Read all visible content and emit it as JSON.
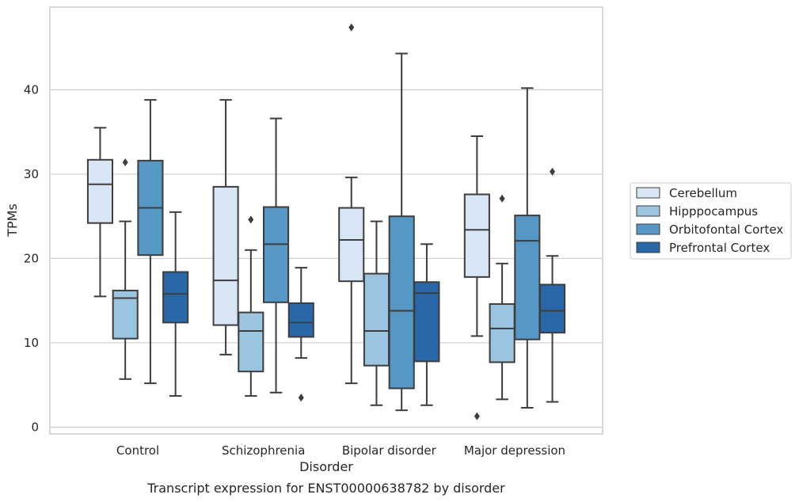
{
  "chart_data": {
    "type": "box",
    "title": "",
    "caption": "Transcript expression for ENST00000638782 by disorder",
    "xlabel": "Disorder",
    "ylabel": "TPMs",
    "ylim": [
      -0.8,
      49.8
    ],
    "yticks": [
      0,
      10,
      20,
      30,
      40
    ],
    "grid": "horizontal",
    "legend_position": "right",
    "categories": [
      "Control",
      "Schizophrenia",
      "Bipolar disorder",
      "Major depression"
    ],
    "series": [
      {
        "name": "Cerebellum",
        "color": "#d7e5f4",
        "boxes": [
          {
            "whisker_low": 15.5,
            "q1": 24.2,
            "median": 28.8,
            "q3": 31.7,
            "whisker_high": 35.5,
            "outliers": []
          },
          {
            "whisker_low": 8.6,
            "q1": 12.1,
            "median": 17.4,
            "q3": 28.5,
            "whisker_high": 38.8,
            "outliers": []
          },
          {
            "whisker_low": 5.2,
            "q1": 17.3,
            "median": 22.2,
            "q3": 26.0,
            "whisker_high": 29.6,
            "outliers": [
              47.4
            ]
          },
          {
            "whisker_low": 10.8,
            "q1": 17.8,
            "median": 23.4,
            "q3": 27.6,
            "whisker_high": 34.5,
            "outliers": [
              1.3
            ]
          }
        ]
      },
      {
        "name": "Hipppocampus",
        "color": "#9ac4df",
        "boxes": [
          {
            "whisker_low": 5.7,
            "q1": 10.5,
            "median": 15.3,
            "q3": 16.2,
            "whisker_high": 24.4,
            "outliers": [
              31.4
            ]
          },
          {
            "whisker_low": 3.7,
            "q1": 6.6,
            "median": 11.4,
            "q3": 13.6,
            "whisker_high": 21.0,
            "outliers": [
              24.6
            ]
          },
          {
            "whisker_low": 2.6,
            "q1": 7.3,
            "median": 11.4,
            "q3": 18.2,
            "whisker_high": 24.4,
            "outliers": []
          },
          {
            "whisker_low": 3.3,
            "q1": 7.7,
            "median": 11.7,
            "q3": 14.6,
            "whisker_high": 19.4,
            "outliers": [
              27.1
            ]
          }
        ]
      },
      {
        "name": "Orbitofontal Cortex",
        "color": "#5598c6",
        "boxes": [
          {
            "whisker_low": 5.2,
            "q1": 20.4,
            "median": 26.0,
            "q3": 31.6,
            "whisker_high": 38.8,
            "outliers": []
          },
          {
            "whisker_low": 4.1,
            "q1": 14.8,
            "median": 21.7,
            "q3": 26.1,
            "whisker_high": 36.6,
            "outliers": []
          },
          {
            "whisker_low": 2.0,
            "q1": 4.6,
            "median": 13.8,
            "q3": 25.0,
            "whisker_high": 44.3,
            "outliers": []
          },
          {
            "whisker_low": 2.3,
            "q1": 10.4,
            "median": 22.1,
            "q3": 25.1,
            "whisker_high": 40.2,
            "outliers": []
          }
        ]
      },
      {
        "name": "Prefrontal Cortex",
        "color": "#2968a8",
        "boxes": [
          {
            "whisker_low": 3.7,
            "q1": 12.4,
            "median": 15.8,
            "q3": 18.4,
            "whisker_high": 25.5,
            "outliers": []
          },
          {
            "whisker_low": 8.2,
            "q1": 10.7,
            "median": 12.4,
            "q3": 14.7,
            "whisker_high": 18.9,
            "outliers": [
              3.5
            ]
          },
          {
            "whisker_low": 2.6,
            "q1": 7.8,
            "median": 15.9,
            "q3": 17.2,
            "whisker_high": 21.7,
            "outliers": []
          },
          {
            "whisker_low": 3.0,
            "q1": 11.2,
            "median": 13.8,
            "q3": 16.9,
            "whisker_high": 20.3,
            "outliers": [
              30.3
            ]
          }
        ]
      }
    ]
  }
}
